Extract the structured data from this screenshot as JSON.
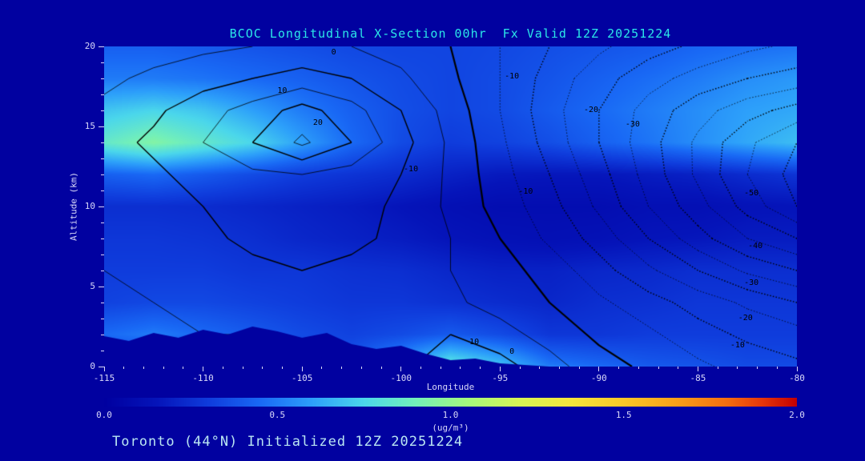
{
  "title": "BCOC Longitudinal X-Section 00hr  Fx Valid 12Z 20251224",
  "footer": "Toronto (44°N) Initialized 12Z 20251224",
  "colors": {
    "background": "#0101A0",
    "title_text": "#2BE8E8",
    "tick_text": "#D8D8F8",
    "axis_text": "#D8D8F8",
    "footer_text": "#BAE6F2",
    "contour_line": "#000000"
  },
  "chart_data": {
    "type": "heatmap",
    "title": "BCOC Longitudinal X-Section 00hr  Fx Valid 12Z 20251224",
    "xlabel": "Longitude",
    "ylabel": "Altitude (km)",
    "x_min": -115,
    "x_max": -80,
    "y_min": 0,
    "y_max": 20,
    "x_ticks": [
      "-115",
      "-110",
      "-105",
      "-100",
      "-95",
      "-90",
      "-85",
      "-80"
    ],
    "y_ticks": [
      "0",
      "5",
      "10",
      "15",
      "20"
    ],
    "fill_field": {
      "name": "BCOC concentration (shaded)",
      "units": "ug/m3",
      "lon_start": -115,
      "lon_step": 2.5,
      "alt_start": 0,
      "alt_step": 2,
      "grid": [
        [
          0.3,
          0.3,
          0.3,
          0.3,
          0.32,
          0.4,
          0.6,
          0.85,
          0.7,
          0.5,
          0.45,
          0.4,
          0.38,
          0.35,
          0.35
        ],
        [
          0.45,
          0.5,
          0.45,
          0.4,
          0.35,
          0.32,
          0.35,
          0.4,
          0.35,
          0.28,
          0.28,
          0.3,
          0.3,
          0.3,
          0.3
        ],
        [
          0.32,
          0.34,
          0.34,
          0.32,
          0.3,
          0.28,
          0.28,
          0.26,
          0.24,
          0.22,
          0.25,
          0.26,
          0.28,
          0.28,
          0.28
        ],
        [
          0.3,
          0.3,
          0.3,
          0.28,
          0.28,
          0.26,
          0.25,
          0.22,
          0.2,
          0.2,
          0.22,
          0.23,
          0.25,
          0.25,
          0.25
        ],
        [
          0.28,
          0.28,
          0.27,
          0.25,
          0.22,
          0.2,
          0.18,
          0.15,
          0.13,
          0.12,
          0.13,
          0.15,
          0.16,
          0.18,
          0.18
        ],
        [
          0.25,
          0.25,
          0.24,
          0.22,
          0.2,
          0.18,
          0.15,
          0.12,
          0.1,
          0.1,
          0.1,
          0.12,
          0.12,
          0.14,
          0.15
        ],
        [
          0.42,
          0.45,
          0.4,
          0.35,
          0.3,
          0.27,
          0.24,
          0.2,
          0.17,
          0.16,
          0.16,
          0.18,
          0.2,
          0.24,
          0.27
        ],
        [
          0.85,
          0.95,
          0.85,
          0.75,
          0.6,
          0.45,
          0.35,
          0.3,
          0.32,
          0.36,
          0.42,
          0.48,
          0.55,
          0.62,
          0.68
        ],
        [
          0.7,
          0.75,
          0.7,
          0.6,
          0.5,
          0.42,
          0.36,
          0.33,
          0.35,
          0.4,
          0.45,
          0.5,
          0.55,
          0.6,
          0.62
        ],
        [
          0.5,
          0.5,
          0.48,
          0.45,
          0.42,
          0.38,
          0.35,
          0.33,
          0.35,
          0.38,
          0.42,
          0.46,
          0.5,
          0.55,
          0.58
        ],
        [
          0.42,
          0.42,
          0.4,
          0.38,
          0.36,
          0.34,
          0.33,
          0.33,
          0.34,
          0.36,
          0.38,
          0.4,
          0.44,
          0.46,
          0.48
        ]
      ]
    },
    "line_field": {
      "name": "overlaid contour field (solid positive, dotted negative)",
      "levels_min": -55,
      "levels_max": 25,
      "levels_step": 5,
      "lon_start": -115,
      "lon_step": 2.5,
      "alt_start": 0,
      "alt_step": 2,
      "grid": [
        [
          2,
          3,
          4,
          3,
          5,
          6,
          9,
          13,
          12,
          7,
          2,
          -1,
          -4,
          -7,
          -9
        ],
        [
          3,
          4,
          5,
          5,
          6,
          7,
          9,
          10,
          7,
          3,
          -1,
          -4,
          -8,
          -11,
          -13
        ],
        [
          4,
          5,
          6,
          7,
          8,
          8,
          8,
          6,
          3,
          0,
          -4,
          -8,
          -12,
          -16,
          -20
        ],
        [
          5,
          6,
          8,
          9,
          10,
          9,
          8,
          5,
          2,
          -2,
          -8,
          -14,
          -20,
          -26,
          -30
        ],
        [
          5,
          7,
          9,
          11,
          12,
          11,
          9,
          5,
          0,
          -6,
          -12,
          -20,
          -28,
          -35,
          -40
        ],
        [
          6,
          8,
          10,
          12,
          13,
          12,
          9,
          4,
          -2,
          -8,
          -16,
          -25,
          -33,
          -42,
          -50
        ],
        [
          7,
          9,
          12,
          14,
          15,
          13,
          10,
          4,
          -3,
          -10,
          -18,
          -27,
          -36,
          -45,
          -52
        ],
        [
          8,
          11,
          15,
          20,
          26,
          20,
          12,
          4,
          -4,
          -12,
          -20,
          -28,
          -36,
          -44,
          -50
        ],
        [
          6,
          9,
          13,
          17,
          22,
          17,
          10,
          3,
          -5,
          -13,
          -20,
          -27,
          -33,
          -38,
          -42
        ],
        [
          4,
          6,
          8,
          10,
          12,
          10,
          6,
          1,
          -5,
          -12,
          -18,
          -23,
          -27,
          -30,
          -32
        ],
        [
          2,
          3,
          4,
          5,
          6,
          5,
          3,
          0,
          -5,
          -10,
          -14,
          -18,
          -21,
          -24,
          -26
        ]
      ]
    },
    "terrain": {
      "lon_start": -115,
      "lon_step": 1.25,
      "heights_km": [
        1.9,
        1.6,
        2.1,
        1.8,
        2.3,
        2.0,
        2.5,
        2.2,
        1.8,
        2.1,
        1.4,
        1.1,
        1.3,
        0.8,
        0.4,
        0.5,
        0.2,
        0.1,
        0,
        0,
        0,
        0,
        0,
        0,
        0,
        0,
        0,
        0,
        0
      ]
    },
    "contour_labels": [
      {
        "text": "0",
        "lon": -103.4,
        "alt": 19.6
      },
      {
        "text": "10",
        "lon": -106.0,
        "alt": 17.2
      },
      {
        "text": "20",
        "lon": -104.2,
        "alt": 15.2
      },
      {
        "text": "-10",
        "lon": -99.5,
        "alt": 12.3
      },
      {
        "text": "-10",
        "lon": -94.4,
        "alt": 18.1
      },
      {
        "text": "-20",
        "lon": -90.4,
        "alt": 16.0
      },
      {
        "text": "-30",
        "lon": -88.3,
        "alt": 15.1
      },
      {
        "text": "-10",
        "lon": -93.7,
        "alt": 10.9
      },
      {
        "text": "-50",
        "lon": -82.3,
        "alt": 10.8
      },
      {
        "text": "-40",
        "lon": -82.1,
        "alt": 7.5
      },
      {
        "text": "-30",
        "lon": -82.3,
        "alt": 5.2
      },
      {
        "text": "-20",
        "lon": -82.6,
        "alt": 3.0
      },
      {
        "text": "-10",
        "lon": -83.0,
        "alt": 1.3
      },
      {
        "text": "10",
        "lon": -96.3,
        "alt": 1.5
      },
      {
        "text": "0",
        "lon": -94.4,
        "alt": 0.9
      }
    ],
    "colorbar": {
      "min": 0.0,
      "max": 2.0,
      "ticks": [
        "0.0",
        "0.5",
        "1.0",
        "1.5",
        "2.0"
      ],
      "units": "(ug/m³)",
      "stops": [
        [
          0.0,
          0,
          0,
          160
        ],
        [
          0.15,
          5,
          20,
          185
        ],
        [
          0.3,
          15,
          60,
          220
        ],
        [
          0.45,
          25,
          105,
          245
        ],
        [
          0.6,
          45,
          160,
          250
        ],
        [
          0.75,
          75,
          215,
          235
        ],
        [
          0.9,
          115,
          240,
          185
        ],
        [
          1.05,
          165,
          248,
          125
        ],
        [
          1.2,
          215,
          245,
          85
        ],
        [
          1.35,
          245,
          230,
          60
        ],
        [
          1.5,
          250,
          200,
          40
        ],
        [
          1.65,
          250,
          160,
          25
        ],
        [
          1.8,
          245,
          110,
          15
        ],
        [
          1.9,
          230,
          55,
          10
        ],
        [
          2.0,
          195,
          0,
          0
        ]
      ]
    }
  }
}
